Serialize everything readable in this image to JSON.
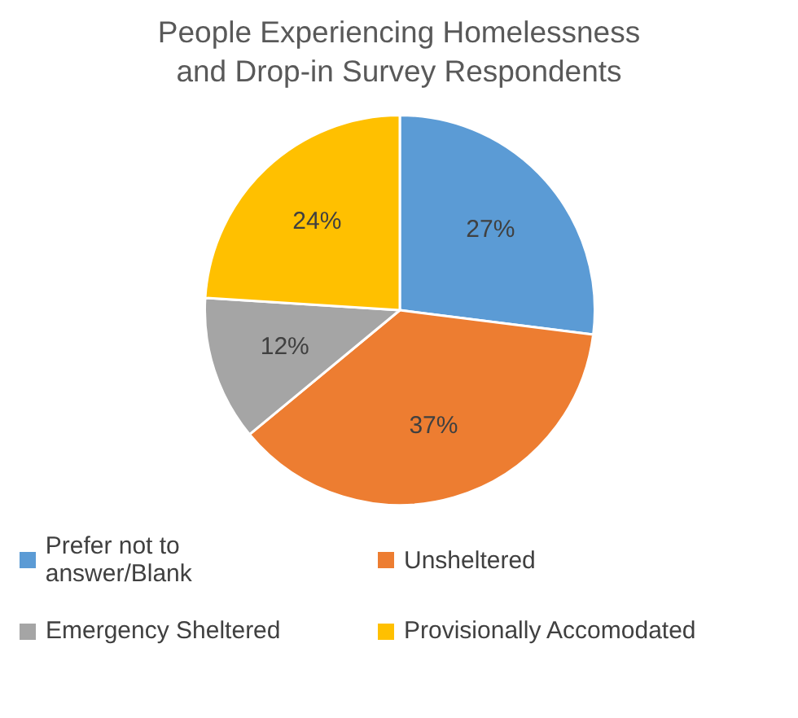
{
  "chart_data": {
    "type": "pie",
    "title": "People Experiencing Homelessness and Drop-in Survey Respondents",
    "categories": [
      "Prefer not to answer/Blank",
      "Unsheltered",
      "Emergency Sheltered",
      "Provisionally Accomodated"
    ],
    "values": [
      27,
      37,
      12,
      24
    ],
    "colors": [
      "#5b9bd5",
      "#ed7d31",
      "#a5a5a5",
      "#ffc000"
    ],
    "value_labels": [
      "27%",
      "37%",
      "12%",
      "24%"
    ],
    "legend": "bottom"
  }
}
